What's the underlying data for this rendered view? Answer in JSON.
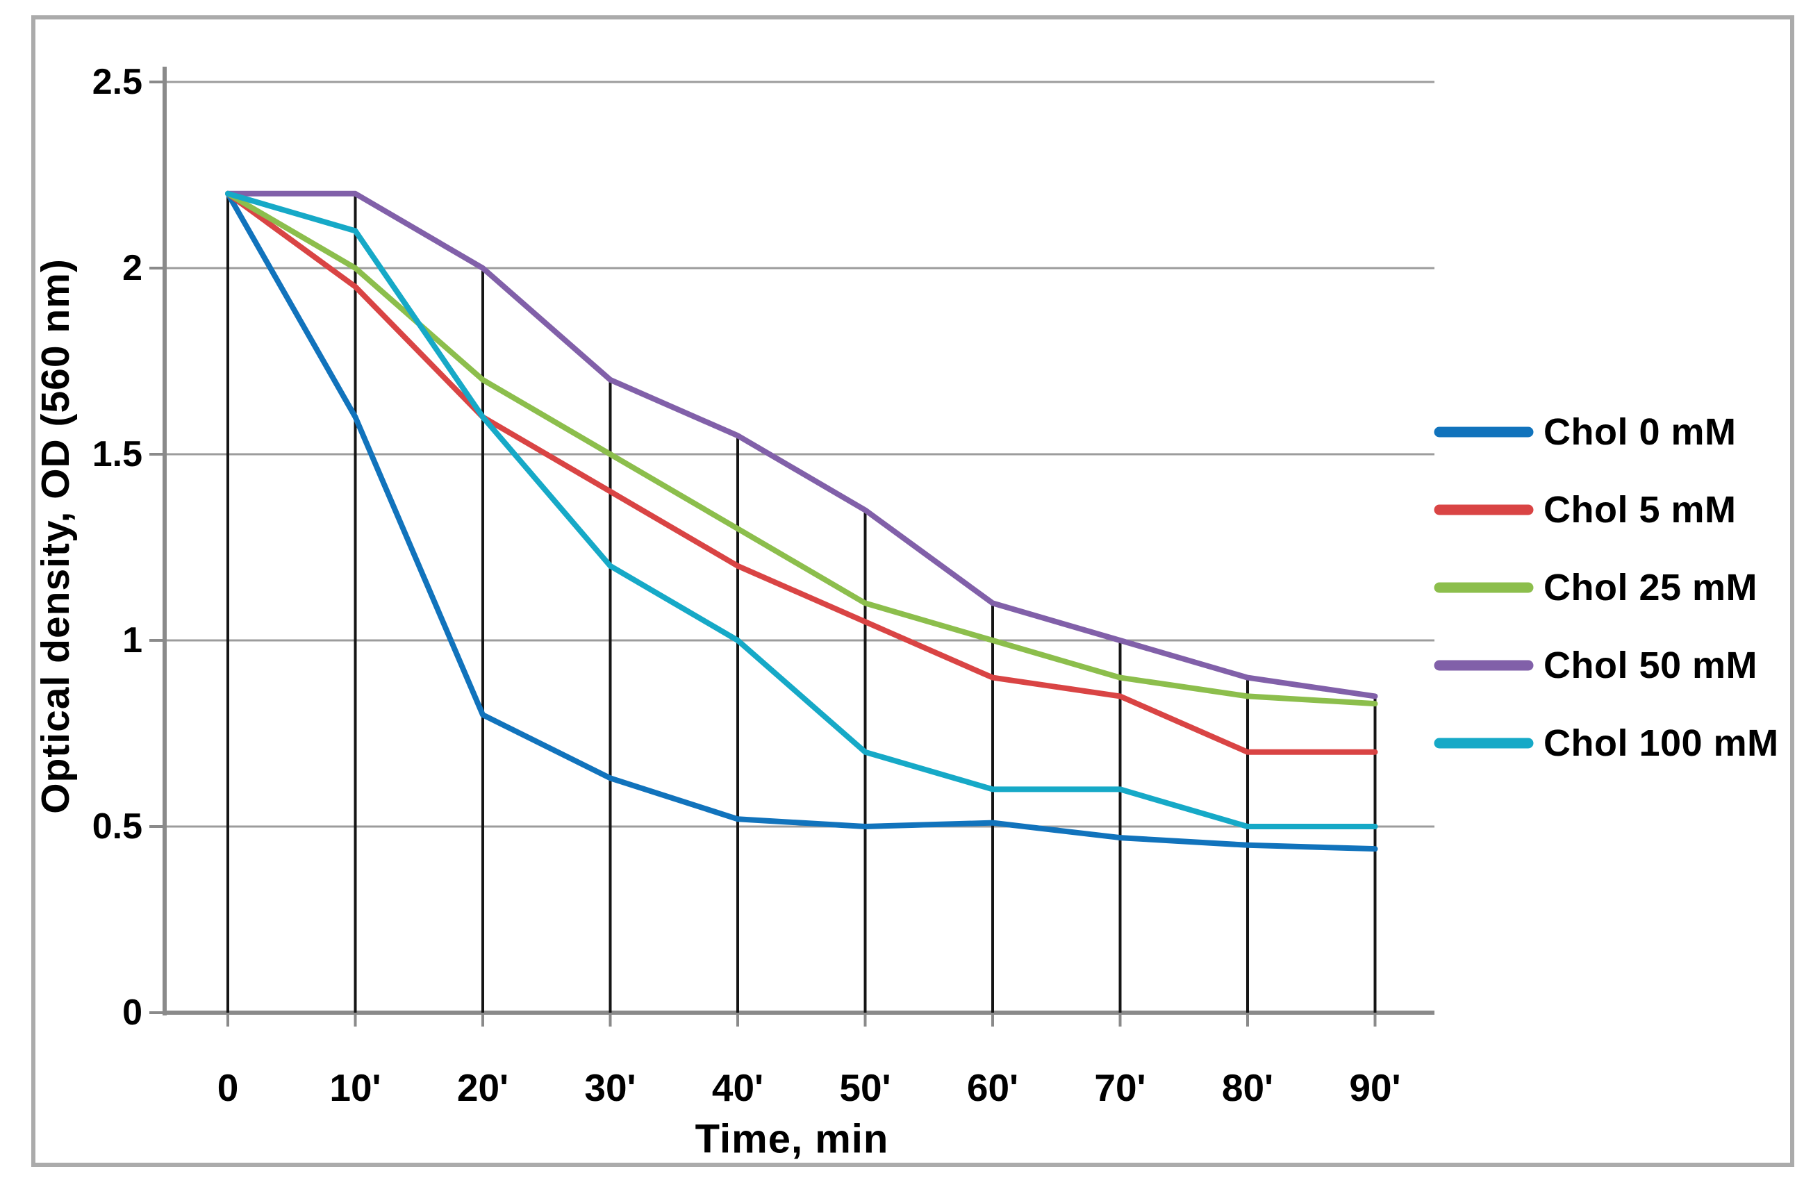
{
  "chart_data": {
    "type": "line",
    "title": "",
    "xlabel": "Time, min",
    "ylabel": "Optical density, OD (560 nm)",
    "x_minutes": [
      0,
      10,
      20,
      30,
      40,
      50,
      60,
      70,
      80,
      90
    ],
    "x_tick_labels": [
      "0",
      "10'",
      "20'",
      "30'",
      "40'",
      "50'",
      "60'",
      "70'",
      "80'",
      "90'"
    ],
    "y_ticks": [
      0,
      0.5,
      1,
      1.5,
      2,
      2.5
    ],
    "y_tick_labels": [
      "0",
      "0.5",
      "1",
      "1.5",
      "2",
      "2.5"
    ],
    "ylim": [
      0,
      2.5
    ],
    "grid": "horizontal-gridlines-on",
    "droplines": "vertical-black-dropline-at-each-time-point",
    "legend_position": "right",
    "series": [
      {
        "name": "Chol 0 mM",
        "color": "#1173bc",
        "values": [
          2.2,
          1.6,
          0.8,
          0.63,
          0.52,
          0.5,
          0.51,
          0.47,
          0.45,
          0.44
        ]
      },
      {
        "name": "Chol 5 mM",
        "color": "#d94444",
        "values": [
          2.2,
          1.95,
          1.6,
          1.4,
          1.2,
          1.05,
          0.9,
          0.85,
          0.7,
          0.7
        ]
      },
      {
        "name": "Chol 25 mM",
        "color": "#8cbe4c",
        "values": [
          2.2,
          2.0,
          1.7,
          1.5,
          1.3,
          1.1,
          1.0,
          0.9,
          0.85,
          0.83
        ]
      },
      {
        "name": "Chol 50 mM",
        "color": "#8160a9",
        "values": [
          2.2,
          2.2,
          2.0,
          1.7,
          1.55,
          1.35,
          1.1,
          1.0,
          0.9,
          0.85
        ]
      },
      {
        "name": "Chol 100 mM",
        "color": "#16a9c7",
        "values": [
          2.2,
          2.1,
          1.6,
          1.2,
          1.0,
          0.7,
          0.6,
          0.6,
          0.5,
          0.5
        ]
      }
    ]
  },
  "colors": {
    "gridline": "#9c9c9c",
    "axis": "#8a8a8a",
    "dropline": "#151515",
    "figure_border": "#ababab",
    "text": "#000000",
    "background": "#ffffff"
  }
}
